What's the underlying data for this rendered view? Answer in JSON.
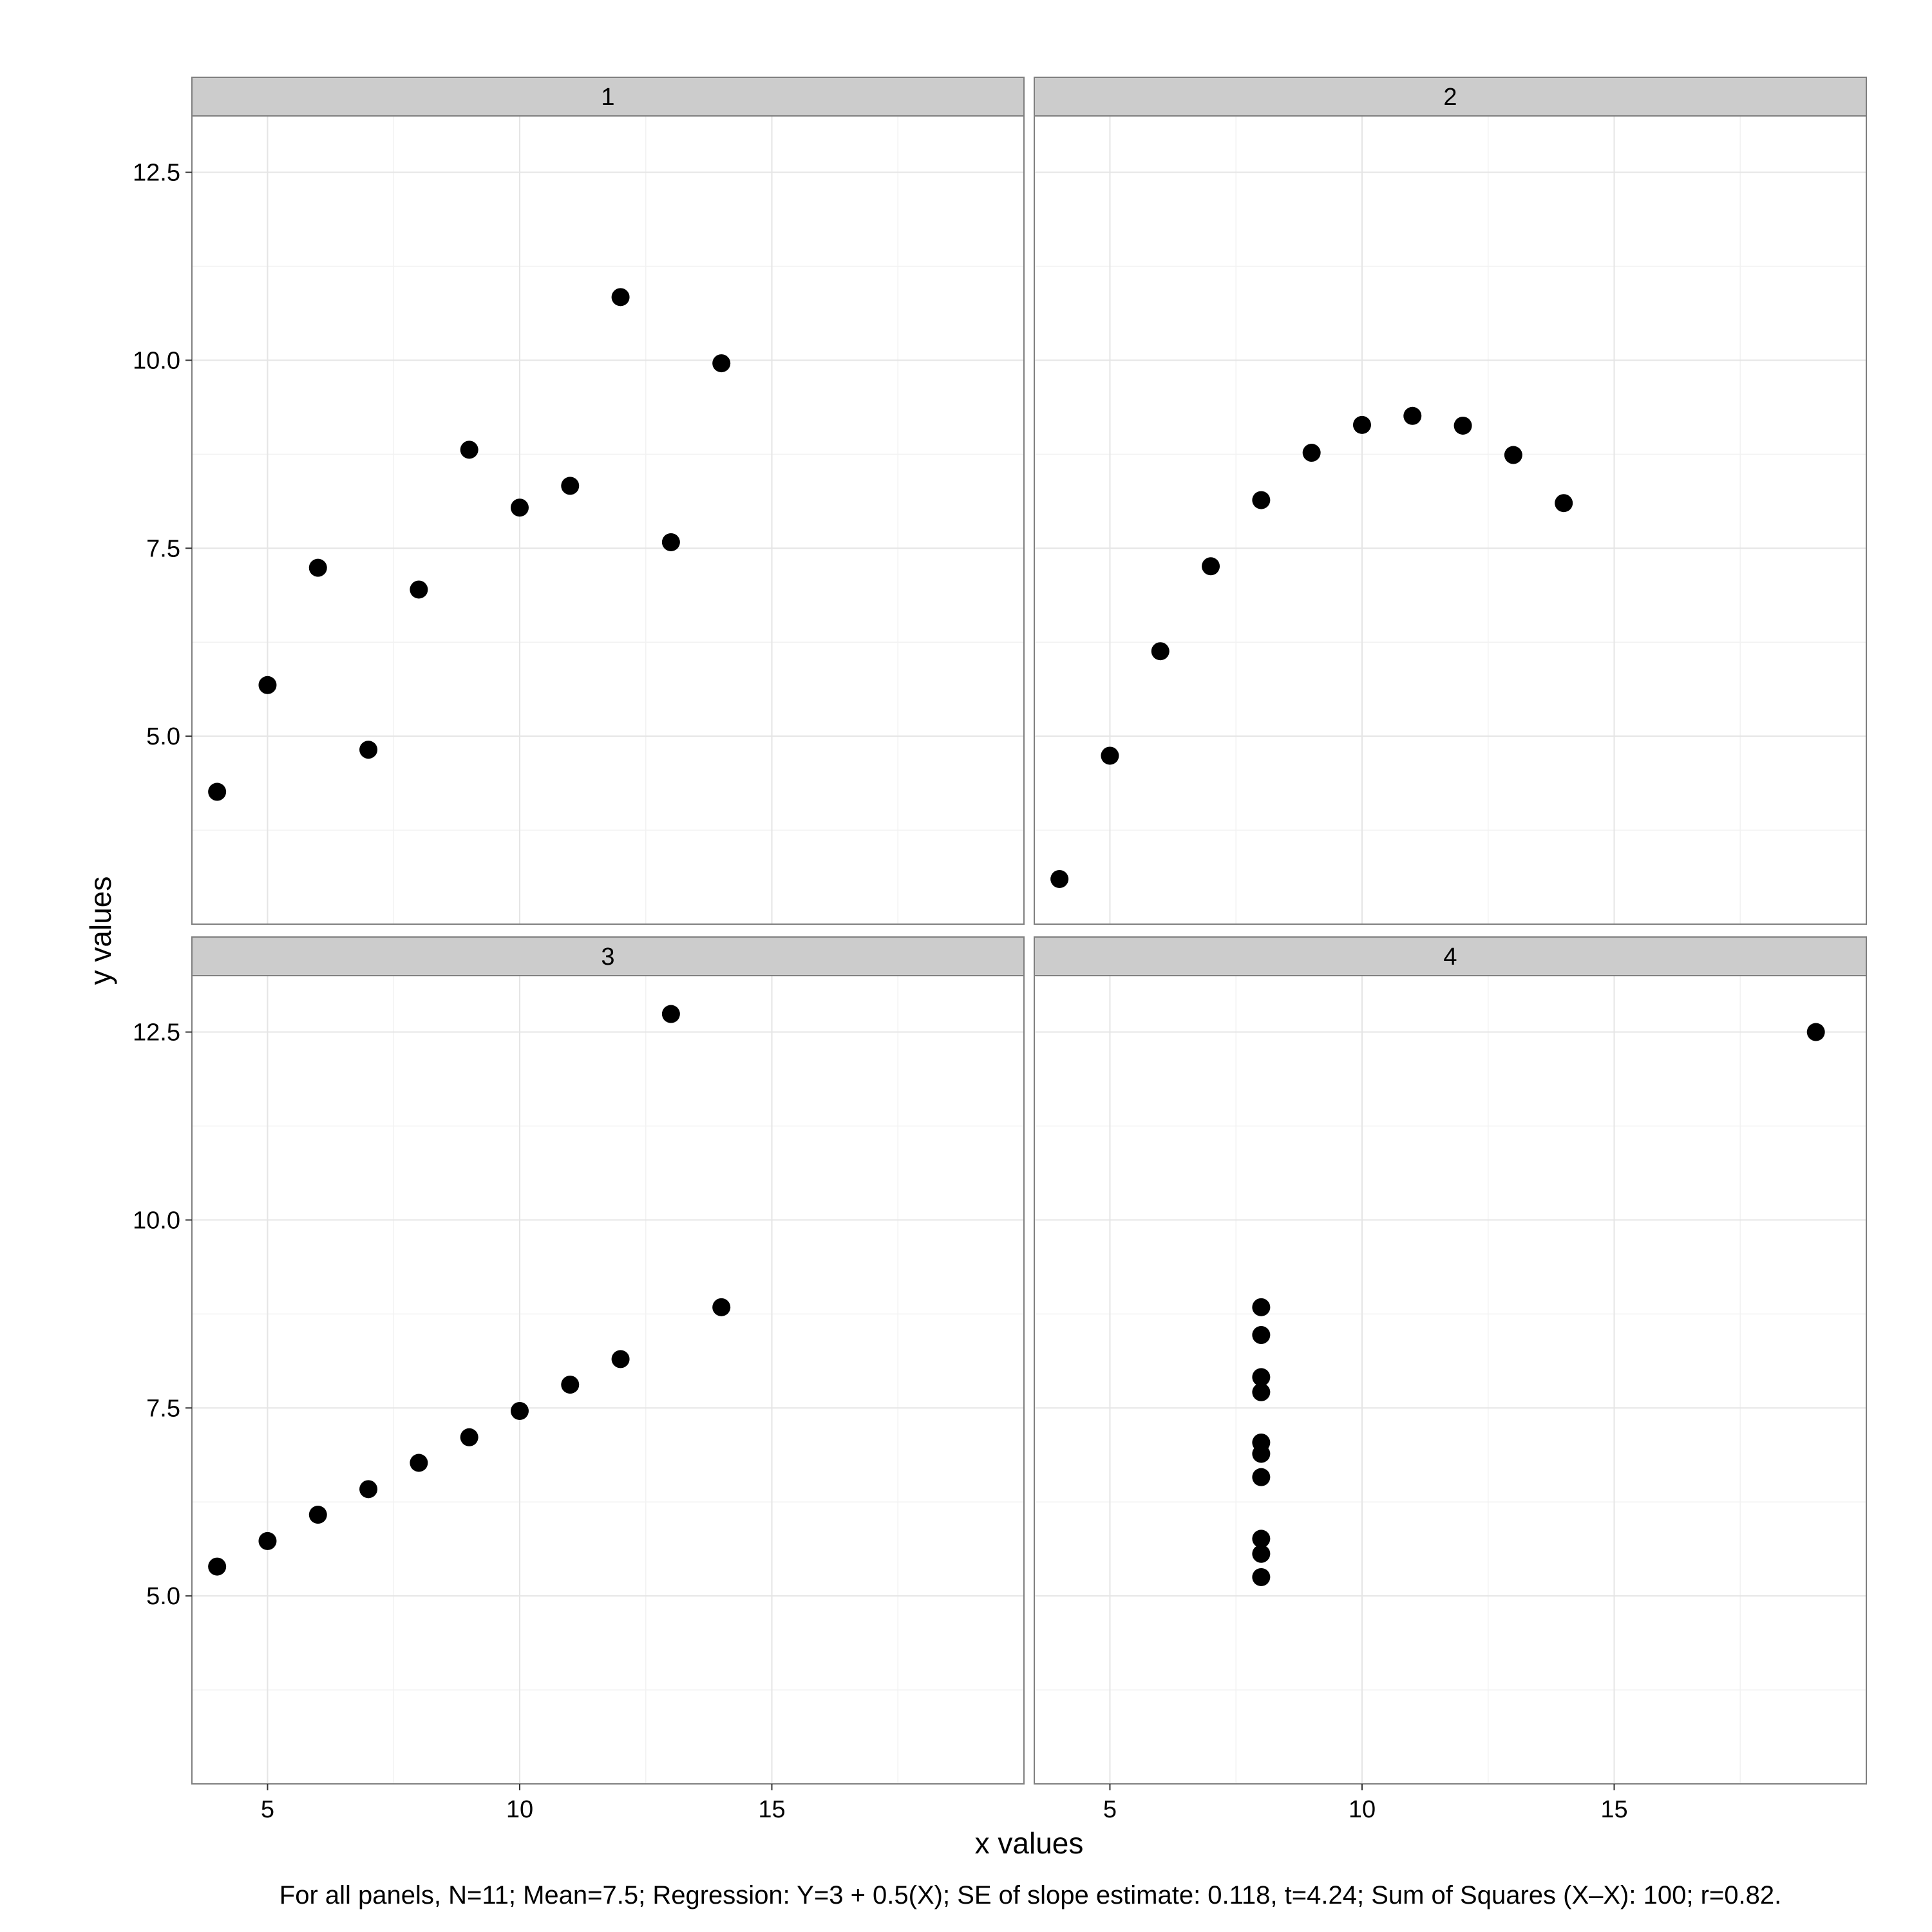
{
  "chart_data": {
    "type": "scatter",
    "facets": [
      "1",
      "2",
      "3",
      "4"
    ],
    "xlabel": "x values",
    "ylabel": "y values",
    "xlim": [
      3.5,
      20
    ],
    "ylim": [
      2.5,
      13.25
    ],
    "x_ticks": [
      5,
      10,
      15
    ],
    "x_tick_labels": [
      "5",
      "10",
      "15"
    ],
    "y_ticks": [
      5,
      7.5,
      10,
      12.5
    ],
    "y_tick_labels": [
      "5.0",
      "7.5",
      "10.0",
      "12.5"
    ],
    "grid": true,
    "caption": "For all panels, N=11; Mean=7.5; Regression: Y=3 + 0.5(X); SE of slope estimate: 0.118, t=4.24; Sum of Squares (X–X): 100; r=0.82.",
    "panels": [
      {
        "name": "1",
        "x": [
          10,
          8,
          13,
          9,
          11,
          14,
          6,
          4,
          12,
          7,
          5
        ],
        "y": [
          8.04,
          6.95,
          7.58,
          8.81,
          8.33,
          9.96,
          7.24,
          4.26,
          10.84,
          4.82,
          5.68
        ]
      },
      {
        "name": "2",
        "x": [
          10,
          8,
          13,
          9,
          11,
          14,
          6,
          4,
          12,
          7,
          5
        ],
        "y": [
          9.14,
          8.14,
          8.74,
          8.77,
          9.26,
          8.1,
          6.13,
          3.1,
          9.13,
          7.26,
          4.74
        ]
      },
      {
        "name": "3",
        "x": [
          10,
          8,
          13,
          9,
          11,
          14,
          6,
          4,
          12,
          7,
          5
        ],
        "y": [
          7.46,
          6.77,
          12.74,
          7.11,
          7.81,
          8.84,
          6.08,
          5.39,
          8.15,
          6.42,
          5.73
        ]
      },
      {
        "name": "4",
        "x": [
          8,
          8,
          8,
          8,
          8,
          8,
          8,
          19,
          8,
          8,
          8
        ],
        "y": [
          6.58,
          5.76,
          7.71,
          8.84,
          8.47,
          7.04,
          5.25,
          12.5,
          5.56,
          7.91,
          6.89
        ]
      }
    ]
  }
}
